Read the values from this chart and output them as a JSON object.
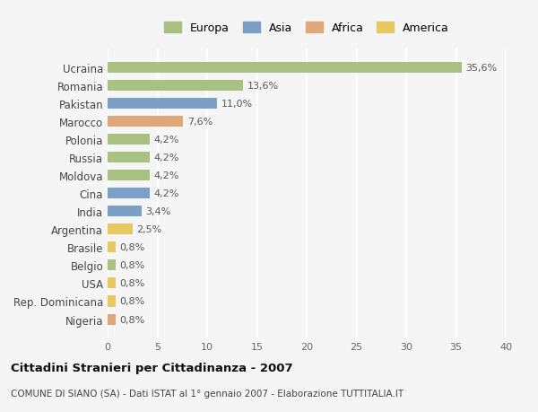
{
  "countries": [
    "Ucraina",
    "Romania",
    "Pakistan",
    "Marocco",
    "Polonia",
    "Russia",
    "Moldova",
    "Cina",
    "India",
    "Argentina",
    "Brasile",
    "Belgio",
    "USA",
    "Rep. Dominicana",
    "Nigeria"
  ],
  "values": [
    35.6,
    13.6,
    11.0,
    7.6,
    4.2,
    4.2,
    4.2,
    4.2,
    3.4,
    2.5,
    0.8,
    0.8,
    0.8,
    0.8,
    0.8
  ],
  "labels": [
    "35,6%",
    "13,6%",
    "11,0%",
    "7,6%",
    "4,2%",
    "4,2%",
    "4,2%",
    "4,2%",
    "3,4%",
    "2,5%",
    "0,8%",
    "0,8%",
    "0,8%",
    "0,8%",
    "0,8%"
  ],
  "continents": [
    "Europa",
    "Europa",
    "Asia",
    "Africa",
    "Europa",
    "Europa",
    "Europa",
    "Asia",
    "Asia",
    "America",
    "America",
    "Europa",
    "America",
    "America",
    "Africa"
  ],
  "continent_colors": {
    "Europa": "#a8c080",
    "Asia": "#7b9fc7",
    "Africa": "#e0a878",
    "America": "#e8c860"
  },
  "legend_labels": [
    "Europa",
    "Asia",
    "Africa",
    "America"
  ],
  "legend_colors": [
    "#a8c080",
    "#7b9fc7",
    "#e0a878",
    "#e8c860"
  ],
  "title": "Cittadini Stranieri per Cittadinanza - 2007",
  "subtitle": "COMUNE DI SIANO (SA) - Dati ISTAT al 1° gennaio 2007 - Elaborazione TUTTITALIA.IT",
  "xlim": [
    0,
    40
  ],
  "xticks": [
    0,
    5,
    10,
    15,
    20,
    25,
    30,
    35,
    40
  ],
  "background_color": "#f5f5f5",
  "grid_color": "#ffffff",
  "bar_height": 0.6
}
